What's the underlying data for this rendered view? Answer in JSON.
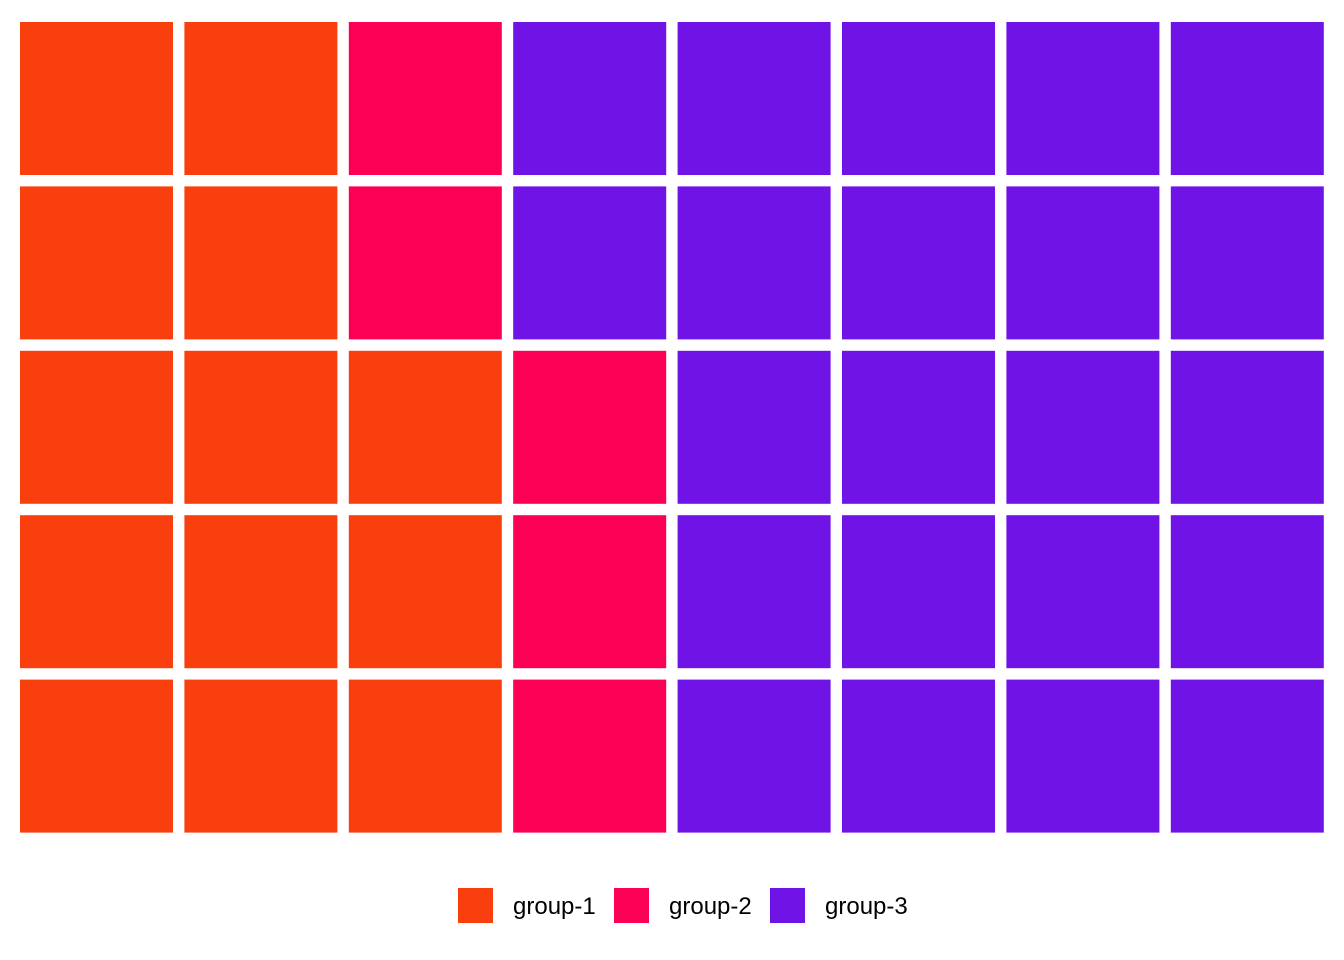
{
  "chart_data": {
    "type": "waffle",
    "rows": 5,
    "columns": 8,
    "fill_order": "column-major, bottom-to-top, left-to-right",
    "categories": [
      "group-1",
      "group-2",
      "group-3"
    ],
    "values": [
      13,
      5,
      22
    ],
    "colors": [
      "#F93F0E",
      "#FC0055",
      "#7013E6"
    ],
    "title": "",
    "xlabel": "",
    "ylabel": "",
    "grid": false,
    "legend": {
      "position": "bottom",
      "entries": [
        "group-1",
        "group-2",
        "group-3"
      ]
    }
  }
}
